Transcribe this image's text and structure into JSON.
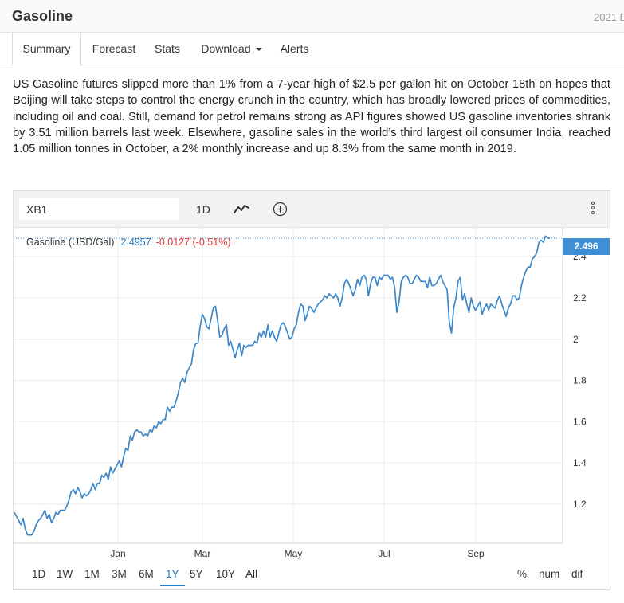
{
  "header": {
    "title": "Gasoline",
    "date": "2021 D"
  },
  "tabs": [
    {
      "label": "Summary"
    },
    {
      "label": "Forecast"
    },
    {
      "label": "Stats"
    },
    {
      "label": "Download"
    },
    {
      "label": "Alerts"
    }
  ],
  "description": "US Gasoline futures slipped more than 1% from a 7-year high of $2.5 per gallon hit on October 18th on hopes that Beijing will take steps to control the energy crunch in the country, which has broadly lowered prices of commodities, including oil and coal. Still, demand for petrol remains strong as API figures showed US gasoline inventories shrank by 3.51 million barrels last week. Elsewhere, gasoline sales in the world’s third largest oil consumer India, reached 1.05 million tonnes in October, a 2% monthly increase and up 8.3% from the same month in 2019.",
  "toolbar": {
    "symbol": "XB1",
    "interval": "1D",
    "chart_type_icon": "line-chart-icon",
    "add_icon": "plus-circle-icon",
    "menu_icon": "vertical-ellipsis-icon"
  },
  "legend": {
    "name": "Gasoline (USD/Gal)",
    "price": "2.4957",
    "change": "-0.0127 (-0.51%)",
    "current_tag": "2.496"
  },
  "ranges": [
    "1D",
    "1W",
    "1M",
    "3M",
    "6M",
    "1Y",
    "5Y",
    "10Y",
    "All"
  ],
  "active_range": "1Y",
  "options": [
    "%",
    "num",
    "dif"
  ],
  "colors": {
    "line": "#3d87c8",
    "accent": "#2a7cc0",
    "negative": "#e53935",
    "tag": "#3e8fd6"
  },
  "chart_data": {
    "type": "line",
    "series": [
      {
        "name": "Gasoline (USD/Gal)",
        "values": [
          1.16,
          1.14,
          1.12,
          1.1,
          1.13,
          1.08,
          1.05,
          1.05,
          1.05,
          1.07,
          1.1,
          1.12,
          1.13,
          1.15,
          1.17,
          1.13,
          1.15,
          1.11,
          1.13,
          1.16,
          1.15,
          1.17,
          1.17,
          1.17,
          1.19,
          1.22,
          1.26,
          1.27,
          1.25,
          1.28,
          1.26,
          1.23,
          1.25,
          1.24,
          1.25,
          1.27,
          1.3,
          1.27,
          1.3,
          1.3,
          1.34,
          1.33,
          1.35,
          1.32,
          1.38,
          1.35,
          1.37,
          1.39,
          1.41,
          1.38,
          1.43,
          1.47,
          1.46,
          1.53,
          1.51,
          1.55,
          1.56,
          1.55,
          1.55,
          1.53,
          1.54,
          1.53,
          1.56,
          1.55,
          1.58,
          1.57,
          1.6,
          1.59,
          1.61,
          1.61,
          1.67,
          1.65,
          1.67,
          1.67,
          1.7,
          1.74,
          1.79,
          1.81,
          1.79,
          1.84,
          1.86,
          1.88,
          1.95,
          1.98,
          1.98,
          2.06,
          2.12,
          2.1,
          2.06,
          2.05,
          2.1,
          2.15,
          2.16,
          2.09,
          2.01,
          2.02,
          2.05,
          2.07,
          1.97,
          1.99,
          1.95,
          1.91,
          1.95,
          1.98,
          1.92,
          1.97,
          1.96,
          1.97,
          1.97,
          1.97,
          1.99,
          1.98,
          2.03,
          2.01,
          2.04,
          2.01,
          2.07,
          2.01,
          2.04,
          2.01,
          1.99,
          2.03,
          2.07,
          2.08,
          2.06,
          2.03,
          2.0,
          2.01,
          2.05,
          2.07,
          2.13,
          2.17,
          2.16,
          2.09,
          2.12,
          2.16,
          2.15,
          2.13,
          2.15,
          2.17,
          2.18,
          2.19,
          2.21,
          2.2,
          2.22,
          2.21,
          2.2,
          2.22,
          2.2,
          2.16,
          2.2,
          2.27,
          2.29,
          2.27,
          2.24,
          2.21,
          2.24,
          2.29,
          2.26,
          2.3,
          2.31,
          2.29,
          2.21,
          2.27,
          2.3,
          2.3,
          2.26,
          2.3,
          2.29,
          2.31,
          2.31,
          2.31,
          2.29,
          2.3,
          2.25,
          2.13,
          2.18,
          2.28,
          2.3,
          2.31,
          2.3,
          2.27,
          2.27,
          2.29,
          2.31,
          2.3,
          2.28,
          2.28,
          2.28,
          2.25,
          2.3,
          2.26,
          2.26,
          2.27,
          2.29,
          2.31,
          2.28,
          2.26,
          2.24,
          2.08,
          2.03,
          2.15,
          2.2,
          2.28,
          2.3,
          2.19,
          2.22,
          2.17,
          2.13,
          2.2,
          2.16,
          2.14,
          2.16,
          2.18,
          2.12,
          2.15,
          2.17,
          2.14,
          2.17,
          2.16,
          2.15,
          2.19,
          2.21,
          2.17,
          2.14,
          2.11,
          2.15,
          2.17,
          2.21,
          2.21,
          2.19,
          2.2,
          2.26,
          2.3,
          2.33,
          2.35,
          2.35,
          2.39,
          2.4,
          2.42,
          2.47,
          2.48,
          2.47,
          2.5,
          2.49,
          2.49
        ]
      }
    ],
    "x_tick_labels": [
      "Jan",
      "Mar",
      "May",
      "Jul",
      "Sep"
    ],
    "y_ticks": [
      1.2,
      1.4,
      1.6,
      1.8,
      2,
      2.2,
      2.4
    ],
    "ylim": [
      1.01,
      2.54
    ],
    "grid": true
  }
}
